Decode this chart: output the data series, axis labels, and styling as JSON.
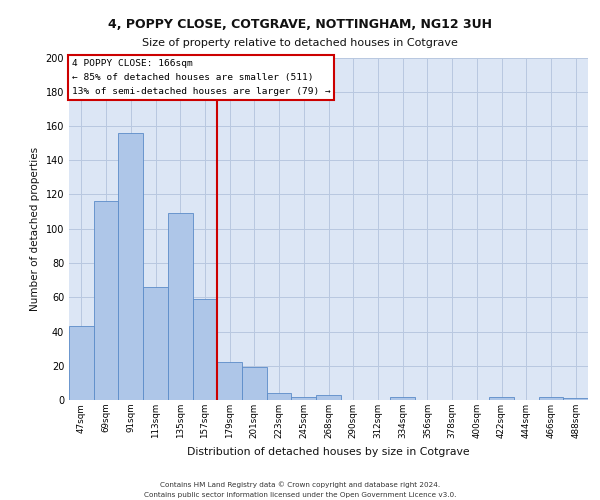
{
  "title1": "4, POPPY CLOSE, COTGRAVE, NOTTINGHAM, NG12 3UH",
  "title2": "Size of property relative to detached houses in Cotgrave",
  "xlabel": "Distribution of detached houses by size in Cotgrave",
  "ylabel": "Number of detached properties",
  "categories": [
    "47sqm",
    "69sqm",
    "91sqm",
    "113sqm",
    "135sqm",
    "157sqm",
    "179sqm",
    "201sqm",
    "223sqm",
    "245sqm",
    "268sqm",
    "290sqm",
    "312sqm",
    "334sqm",
    "356sqm",
    "378sqm",
    "400sqm",
    "422sqm",
    "444sqm",
    "466sqm",
    "488sqm"
  ],
  "values": [
    43,
    116,
    156,
    66,
    109,
    59,
    22,
    19,
    4,
    2,
    3,
    0,
    0,
    2,
    0,
    0,
    0,
    2,
    0,
    2,
    1
  ],
  "bar_color": "#aec6e8",
  "bar_edge_color": "#5b8cc8",
  "grid_color": "#b8c8e0",
  "background_color": "#dce6f5",
  "property_label": "4 POPPY CLOSE: 166sqm",
  "annotation_line1": "← 85% of detached houses are smaller (511)",
  "annotation_line2": "13% of semi-detached houses are larger (79) →",
  "vline_color": "#cc0000",
  "vline_x_index": 5.5,
  "box_color": "#cc0000",
  "ylim": [
    0,
    200
  ],
  "yticks": [
    0,
    20,
    40,
    60,
    80,
    100,
    120,
    140,
    160,
    180,
    200
  ],
  "footer1": "Contains HM Land Registry data © Crown copyright and database right 2024.",
  "footer2": "Contains public sector information licensed under the Open Government Licence v3.0."
}
